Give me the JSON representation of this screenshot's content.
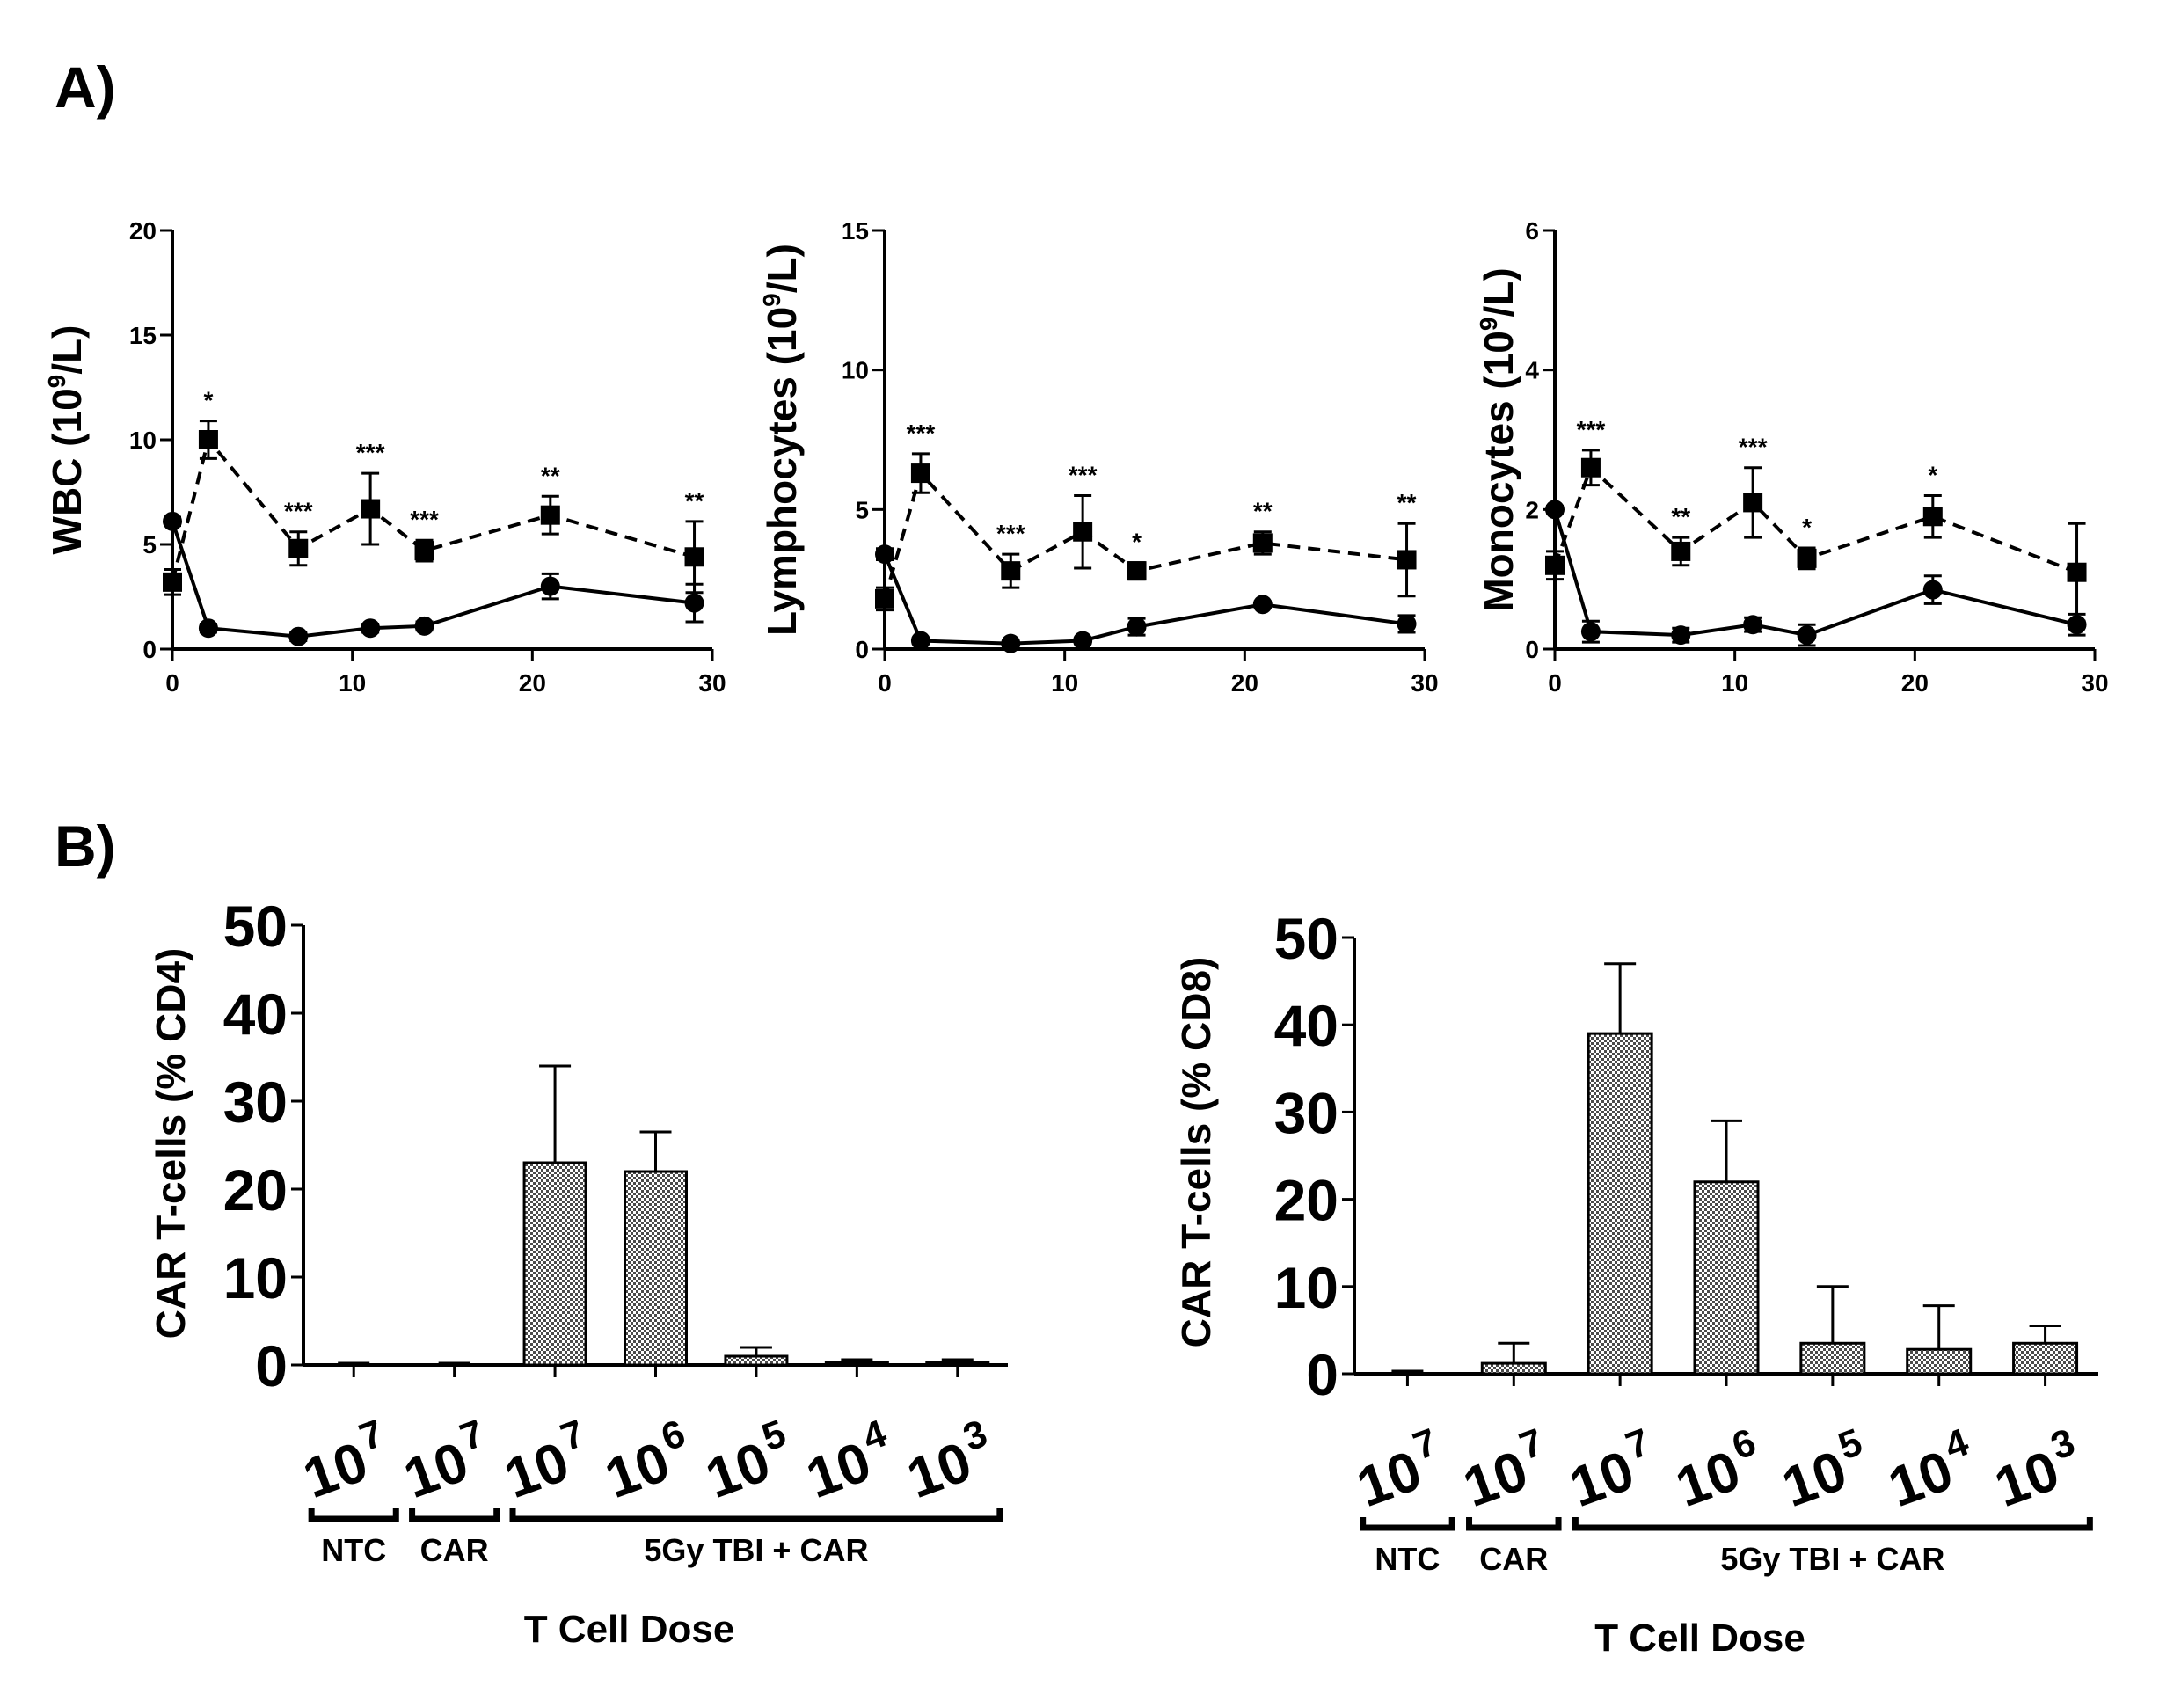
{
  "panel_labels": {
    "a": "A)",
    "b": "B)"
  },
  "chart_data": [
    {
      "type": "line",
      "id": "wbc",
      "panel": "A",
      "ylabel": "WBC (10^9/L)",
      "ylabel_base": "WBC (10",
      "ylabel_sup": "9",
      "ylabel_tail": "/L)",
      "xlim": [
        0,
        30
      ],
      "ylim": [
        0,
        20
      ],
      "xticks": [
        0,
        10,
        20,
        30
      ],
      "yticks": [
        0,
        5,
        10,
        15,
        20
      ],
      "series": [
        {
          "name": "dashed-square",
          "style": "dashed",
          "marker": "square",
          "x": [
            0,
            2,
            7,
            11,
            14,
            21,
            29
          ],
          "y": [
            3.2,
            10.0,
            4.8,
            6.7,
            4.7,
            6.4,
            4.4
          ],
          "err": [
            0.6,
            0.9,
            0.8,
            1.7,
            0.5,
            0.9,
            1.7
          ],
          "annotations": [
            "",
            "*",
            "***",
            "***",
            "***",
            "**",
            "**"
          ]
        },
        {
          "name": "solid-circle",
          "style": "solid",
          "marker": "circle",
          "x": [
            0,
            2,
            7,
            11,
            14,
            21,
            29
          ],
          "y": [
            6.1,
            1.0,
            0.6,
            1.0,
            1.1,
            3.0,
            2.2
          ],
          "err": [
            0.2,
            0.2,
            0.2,
            0.2,
            0.2,
            0.6,
            0.9
          ]
        }
      ]
    },
    {
      "type": "line",
      "id": "lymph",
      "panel": "A",
      "ylabel": "Lymphocytes (10^9/L)",
      "ylabel_base": "Lymphocytes (10",
      "ylabel_sup": "9",
      "ylabel_tail": "/L)",
      "xlim": [
        0,
        30
      ],
      "ylim": [
        0,
        15
      ],
      "xticks": [
        0,
        10,
        20,
        30
      ],
      "yticks": [
        0,
        5,
        10,
        15
      ],
      "series": [
        {
          "name": "dashed-square",
          "style": "dashed",
          "marker": "square",
          "x": [
            0,
            2,
            7,
            11,
            14,
            21,
            29
          ],
          "y": [
            1.8,
            6.3,
            2.8,
            4.2,
            2.8,
            3.8,
            3.2
          ],
          "err": [
            0.4,
            0.7,
            0.6,
            1.3,
            0.3,
            0.4,
            1.3
          ],
          "annotations": [
            "",
            "***",
            "***",
            "***",
            "*",
            "**",
            "**"
          ]
        },
        {
          "name": "solid-circle",
          "style": "solid",
          "marker": "circle",
          "x": [
            0,
            2,
            7,
            11,
            14,
            21,
            29
          ],
          "y": [
            3.4,
            0.3,
            0.2,
            0.3,
            0.8,
            1.6,
            0.9
          ],
          "err": [
            0.2,
            0.1,
            0.1,
            0.1,
            0.3,
            0.1,
            0.3
          ]
        }
      ]
    },
    {
      "type": "line",
      "id": "mono",
      "panel": "A",
      "ylabel": "Monocytes (10^9/L)",
      "ylabel_base": "Monocytes (10",
      "ylabel_sup": "9",
      "ylabel_tail": "/L)",
      "xlim": [
        0,
        30
      ],
      "ylim": [
        0,
        6
      ],
      "xticks": [
        0,
        10,
        20,
        30
      ],
      "yticks": [
        0,
        2,
        4,
        6
      ],
      "series": [
        {
          "name": "dashed-square",
          "style": "dashed",
          "marker": "square",
          "x": [
            0,
            2,
            7,
            11,
            14,
            21,
            29
          ],
          "y": [
            1.2,
            2.6,
            1.4,
            2.1,
            1.3,
            1.9,
            1.1
          ],
          "err": [
            0.2,
            0.25,
            0.2,
            0.5,
            0.15,
            0.3,
            0.7
          ],
          "annotations": [
            "",
            "***",
            "**",
            "***",
            "*",
            "*",
            ""
          ]
        },
        {
          "name": "solid-circle",
          "style": "solid",
          "marker": "circle",
          "x": [
            0,
            2,
            7,
            11,
            14,
            21,
            29
          ],
          "y": [
            2.0,
            0.25,
            0.2,
            0.35,
            0.2,
            0.85,
            0.35
          ],
          "err": [
            0.05,
            0.15,
            0.1,
            0.1,
            0.15,
            0.2,
            0.15
          ]
        }
      ]
    },
    {
      "type": "bar",
      "id": "cd4",
      "panel": "B",
      "ylabel": "CAR T-cells (% CD4)",
      "xlabel": "T Cell Dose",
      "ylim": [
        0,
        50
      ],
      "yticks": [
        0,
        10,
        20,
        30,
        40,
        50
      ],
      "categories": [
        {
          "base": "10",
          "exp": "7"
        },
        {
          "base": "10",
          "exp": "7"
        },
        {
          "base": "10",
          "exp": "7"
        },
        {
          "base": "10",
          "exp": "6"
        },
        {
          "base": "10",
          "exp": "5"
        },
        {
          "base": "10",
          "exp": "4"
        },
        {
          "base": "10",
          "exp": "3"
        }
      ],
      "values": [
        0,
        0,
        23,
        22,
        1,
        0.3,
        0.3
      ],
      "errors": [
        0.2,
        0.2,
        11,
        4.5,
        1,
        0.3,
        0.3
      ],
      "groups": [
        {
          "label": "NTC",
          "from": 0,
          "to": 0
        },
        {
          "label": "CAR",
          "from": 1,
          "to": 1
        },
        {
          "label": "5Gy TBI + CAR",
          "from": 2,
          "to": 6
        }
      ]
    },
    {
      "type": "bar",
      "id": "cd8",
      "panel": "B",
      "ylabel": "CAR T-cells (% CD8)",
      "xlabel": "T Cell Dose",
      "ylim": [
        0,
        50
      ],
      "yticks": [
        0,
        10,
        20,
        30,
        40,
        50
      ],
      "categories": [
        {
          "base": "10",
          "exp": "7"
        },
        {
          "base": "10",
          "exp": "7"
        },
        {
          "base": "10",
          "exp": "7"
        },
        {
          "base": "10",
          "exp": "6"
        },
        {
          "base": "10",
          "exp": "5"
        },
        {
          "base": "10",
          "exp": "4"
        },
        {
          "base": "10",
          "exp": "3"
        }
      ],
      "values": [
        0,
        1.2,
        39,
        22,
        3.5,
        2.8,
        3.5
      ],
      "errors": [
        0.3,
        2.3,
        8,
        7,
        6.5,
        5,
        2
      ],
      "groups": [
        {
          "label": "NTC",
          "from": 0,
          "to": 0
        },
        {
          "label": "CAR",
          "from": 1,
          "to": 1
        },
        {
          "label": "5Gy TBI + CAR",
          "from": 2,
          "to": 6
        }
      ]
    }
  ]
}
